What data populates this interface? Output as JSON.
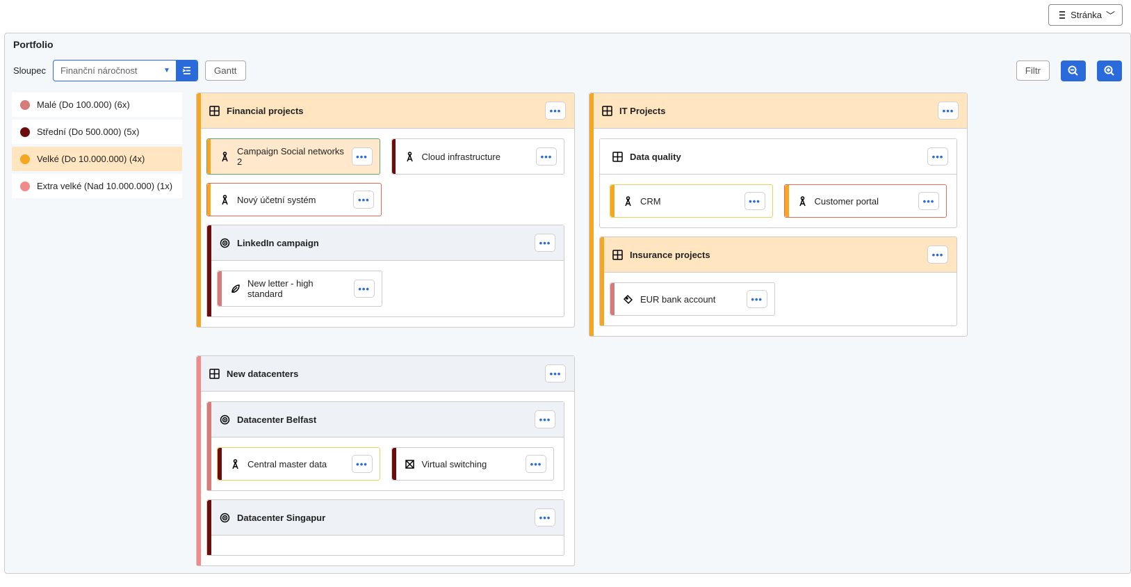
{
  "topbar": {
    "page_label": "Stránka"
  },
  "panel": {
    "title": "Portfolio",
    "column_label": "Sloupec",
    "dropdown_value": "Finanční náročnost",
    "gantt_label": "Gantt",
    "filter_label": "Filtr"
  },
  "colors": {
    "small": "#d77a7a",
    "medium": "#6b0d0d",
    "large": "#f5a623",
    "xlarge": "#f28a8a",
    "primary": "#2b6adb"
  },
  "legend": [
    {
      "label": "Malé (Do 100.000) (6x)",
      "color": "#d77a7a",
      "active": false
    },
    {
      "label": "Střední (Do 500.000) (5x)",
      "color": "#6b0d0d",
      "active": false
    },
    {
      "label": "Velké (Do 10.000.000) (4x)",
      "color": "#f5a623",
      "active": true
    },
    {
      "label": "Extra velké (Nad 10.000.000) (1x)",
      "color": "#f28a8a",
      "active": false
    }
  ],
  "boards": {
    "financial": {
      "title": "Financial projects",
      "stripe": "#f5a623",
      "cards_row1": [
        {
          "title": "Campaign Social networks 2",
          "stripe": "#f5a623",
          "variant": "highlight-orange",
          "icon": "compass"
        },
        {
          "title": "Cloud infrastructure",
          "stripe": "#6b0d0d",
          "variant": "",
          "icon": "compass"
        }
      ],
      "cards_row2": [
        {
          "title": "Nový účetní systém",
          "stripe": "#f5a623",
          "variant": "highlight-red",
          "icon": "compass"
        }
      ],
      "group": {
        "title": "LinkedIn campaign",
        "stripe": "#6b0d0d",
        "cards": [
          {
            "title": "New letter - high standard",
            "stripe": "#d77a7a",
            "variant": "",
            "icon": "leaf"
          }
        ]
      }
    },
    "datacenters": {
      "title": "New datacenters",
      "stripe": "#f28a8a",
      "group1": {
        "title": "Datacenter Belfast",
        "stripe": "#d77a7a",
        "cards": [
          {
            "title": "Central master data",
            "stripe": "#6b0d0d",
            "variant": "highlight-yellow",
            "icon": "compass"
          },
          {
            "title": "Virtual switching",
            "stripe": "#6b0d0d",
            "variant": "",
            "icon": "box"
          }
        ]
      },
      "group2": {
        "title": "Datacenter Singapur",
        "stripe": "#6b0d0d"
      }
    },
    "it": {
      "title": "IT Projects",
      "stripe": "#f5a623",
      "group_data": {
        "title": "Data quality",
        "stripe": "",
        "cards": [
          {
            "title": "CRM",
            "stripe": "#f5a623",
            "variant": "highlight-yellow",
            "icon": "compass"
          },
          {
            "title": "Customer portal",
            "stripe": "#f5a623",
            "variant": "highlight-red",
            "icon": "compass"
          }
        ]
      },
      "group_insurance": {
        "title": "Insurance projects",
        "stripe": "#f5a623",
        "cards": [
          {
            "title": "EUR bank account",
            "stripe": "#d77a7a",
            "variant": "",
            "icon": "tag"
          }
        ]
      }
    }
  }
}
